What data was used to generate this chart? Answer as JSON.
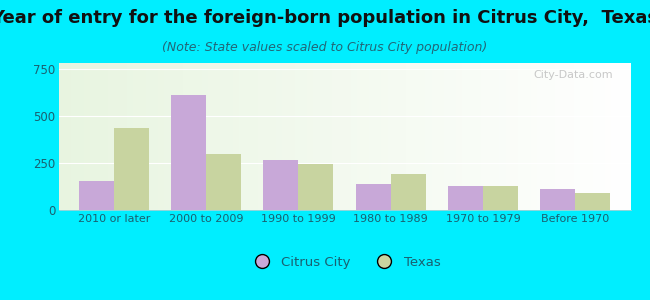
{
  "categories": [
    "2010 or later",
    "2000 to 2009",
    "1990 to 1999",
    "1980 to 1989",
    "1970 to 1979",
    "Before 1970"
  ],
  "citrus_city_values": [
    155,
    610,
    265,
    140,
    125,
    110
  ],
  "texas_values": [
    435,
    295,
    245,
    190,
    125,
    90
  ],
  "citrus_city_color": "#c8a8d8",
  "texas_color": "#c8d4a0",
  "title": "Year of entry for the foreign-born population in Citrus City,  Texas",
  "subtitle": "(Note: State values scaled to Citrus City population)",
  "title_fontsize": 13,
  "subtitle_fontsize": 9,
  "ylim": [
    0,
    780
  ],
  "yticks": [
    0,
    250,
    500,
    750
  ],
  "bar_width": 0.38,
  "legend_labels": [
    "Citrus City",
    "Texas"
  ],
  "watermark": "City-Data.com",
  "fig_bg": "#00eeff",
  "text_color": "#1a5f6a",
  "tick_color": "#1a6070"
}
